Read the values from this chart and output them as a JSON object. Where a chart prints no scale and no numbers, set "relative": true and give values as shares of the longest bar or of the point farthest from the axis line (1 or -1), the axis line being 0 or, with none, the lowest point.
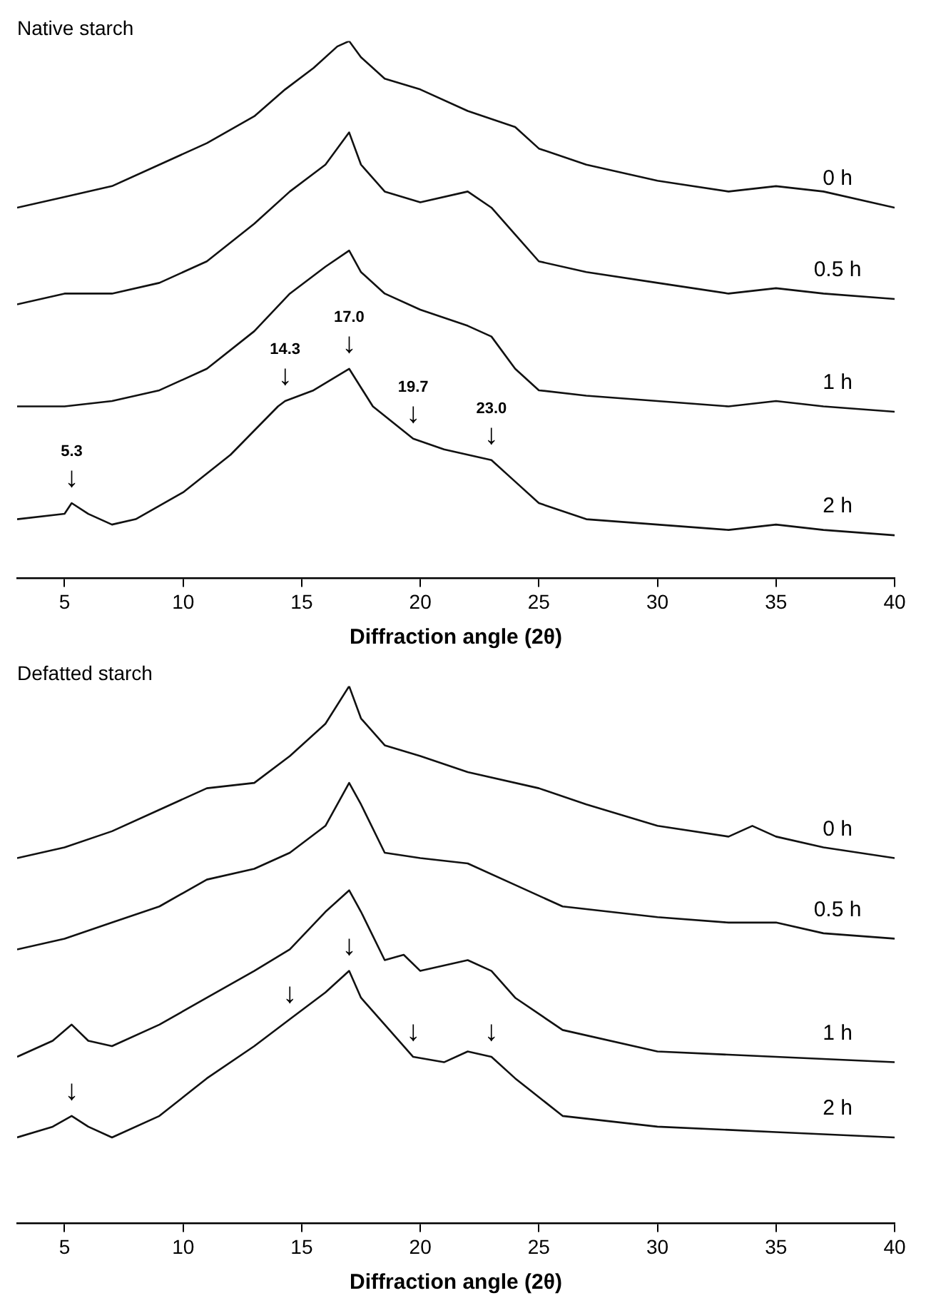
{
  "chart_data": [
    {
      "type": "line",
      "title": "Native starch",
      "xlabel": "Diffraction angle (2θ)",
      "relative": true,
      "xlim": [
        3,
        40
      ],
      "xticks": [
        5,
        10,
        15,
        20,
        25,
        30,
        35,
        40
      ],
      "series": [
        {
          "name": "0 h",
          "color": "#111111",
          "x": [
            3,
            5,
            7,
            9,
            11,
            13,
            14.3,
            15.5,
            16.5,
            17,
            17.5,
            18.5,
            20,
            22,
            24,
            25,
            27,
            30,
            33,
            35,
            37,
            40
          ],
          "values": [
            0.69,
            0.71,
            0.73,
            0.77,
            0.81,
            0.86,
            0.91,
            0.95,
            0.99,
            1.0,
            0.97,
            0.93,
            0.91,
            0.87,
            0.84,
            0.8,
            0.77,
            0.74,
            0.72,
            0.73,
            0.72,
            0.69
          ]
        },
        {
          "name": "0.5 h",
          "color": "#111111",
          "x": [
            3,
            5,
            7,
            9,
            11,
            13,
            14.5,
            16,
            17,
            17.5,
            18.5,
            20,
            22,
            23,
            24,
            25,
            27,
            30,
            33,
            35,
            37,
            40
          ],
          "values": [
            0.51,
            0.53,
            0.53,
            0.55,
            0.59,
            0.66,
            0.72,
            0.77,
            0.83,
            0.77,
            0.72,
            0.7,
            0.72,
            0.69,
            0.64,
            0.59,
            0.57,
            0.55,
            0.53,
            0.54,
            0.53,
            0.52
          ]
        },
        {
          "name": "1 h",
          "color": "#111111",
          "x": [
            3,
            5,
            7,
            9,
            11,
            13,
            14.5,
            16,
            17,
            17.5,
            18.5,
            20,
            22,
            23,
            24,
            25,
            27,
            30,
            33,
            35,
            37,
            40
          ],
          "values": [
            0.32,
            0.32,
            0.33,
            0.35,
            0.39,
            0.46,
            0.53,
            0.58,
            0.61,
            0.57,
            0.53,
            0.5,
            0.47,
            0.45,
            0.39,
            0.35,
            0.34,
            0.33,
            0.32,
            0.33,
            0.32,
            0.31
          ]
        },
        {
          "name": "2 h",
          "color": "#111111",
          "x": [
            3,
            5,
            5.3,
            6,
            7,
            8,
            10,
            12,
            14,
            14.3,
            15.5,
            17,
            18,
            19.7,
            21,
            22,
            23,
            24,
            25,
            27,
            30,
            33,
            35,
            37,
            40
          ],
          "values": [
            0.11,
            0.12,
            0.14,
            0.12,
            0.1,
            0.11,
            0.16,
            0.23,
            0.32,
            0.33,
            0.35,
            0.39,
            0.32,
            0.26,
            0.24,
            0.23,
            0.22,
            0.18,
            0.14,
            0.11,
            0.1,
            0.09,
            0.1,
            0.09,
            0.08
          ]
        }
      ],
      "annotations": [
        {
          "text": "5.3",
          "x": 5.3,
          "y": 0.14
        },
        {
          "text": "↓",
          "x": 5.3,
          "y": 0.14
        },
        {
          "text": "14.3",
          "x": 14.3,
          "y": 0.33
        },
        {
          "text": "↓",
          "x": 14.3,
          "y": 0.33
        },
        {
          "text": "17.0",
          "x": 17,
          "y": 0.39
        },
        {
          "text": "↓",
          "x": 17,
          "y": 0.39
        },
        {
          "text": "19.7",
          "x": 19.7,
          "y": 0.26
        },
        {
          "text": "↓",
          "x": 19.7,
          "y": 0.26
        },
        {
          "text": "23.0",
          "x": 23,
          "y": 0.22
        },
        {
          "text": "↓",
          "x": 23,
          "y": 0.22
        }
      ]
    },
    {
      "type": "line",
      "title": "Defatted starch",
      "xlabel": "Diffraction angle (2θ)",
      "relative": true,
      "xlim": [
        3,
        40
      ],
      "xticks": [
        5,
        10,
        15,
        20,
        25,
        30,
        35,
        40
      ],
      "series": [
        {
          "name": "0 h",
          "color": "#111111",
          "x": [
            3,
            5,
            7,
            9,
            11,
            13,
            14.5,
            16,
            17,
            17.5,
            18.5,
            20,
            22,
            25,
            27,
            30,
            33,
            34,
            35,
            37,
            40
          ],
          "values": [
            0.68,
            0.7,
            0.73,
            0.77,
            0.81,
            0.82,
            0.87,
            0.93,
            1.0,
            0.94,
            0.89,
            0.87,
            0.84,
            0.81,
            0.78,
            0.74,
            0.72,
            0.74,
            0.72,
            0.7,
            0.68
          ]
        },
        {
          "name": "0.5 h",
          "color": "#111111",
          "x": [
            3,
            5,
            7,
            9,
            11,
            13,
            14.5,
            16,
            17,
            17.5,
            18.5,
            20,
            22,
            24,
            26,
            28,
            30,
            33,
            35,
            37,
            40
          ],
          "values": [
            0.51,
            0.53,
            0.56,
            0.59,
            0.64,
            0.66,
            0.69,
            0.74,
            0.82,
            0.78,
            0.69,
            0.68,
            0.67,
            0.63,
            0.59,
            0.58,
            0.57,
            0.56,
            0.56,
            0.54,
            0.53
          ]
        },
        {
          "name": "1 h",
          "color": "#111111",
          "x": [
            3,
            4.5,
            5.3,
            6,
            7,
            9,
            11,
            13,
            14.5,
            16,
            17,
            17.5,
            18.5,
            19.3,
            20,
            22,
            23,
            24,
            26,
            30,
            35,
            40
          ],
          "values": [
            0.31,
            0.34,
            0.37,
            0.34,
            0.33,
            0.37,
            0.42,
            0.47,
            0.51,
            0.58,
            0.62,
            0.58,
            0.49,
            0.5,
            0.47,
            0.49,
            0.47,
            0.42,
            0.36,
            0.32,
            0.31,
            0.3
          ]
        },
        {
          "name": "2 h",
          "color": "#111111",
          "x": [
            3,
            4.5,
            5.3,
            6,
            7,
            9,
            11,
            13,
            14.5,
            16,
            17,
            17.5,
            18.5,
            19.7,
            21,
            22,
            23,
            24,
            26,
            30,
            35,
            40
          ],
          "values": [
            0.16,
            0.18,
            0.2,
            0.18,
            0.16,
            0.2,
            0.27,
            0.33,
            0.38,
            0.43,
            0.47,
            0.42,
            0.37,
            0.31,
            0.3,
            0.32,
            0.31,
            0.27,
            0.2,
            0.18,
            0.17,
            0.16
          ]
        }
      ],
      "annotations": [
        {
          "text": "↓",
          "x": 5.3,
          "y": 0.2
        },
        {
          "text": "↓",
          "x": 14.5,
          "y": 0.38
        },
        {
          "text": "↓",
          "x": 17,
          "y": 0.47
        },
        {
          "text": "↓",
          "x": 19.7,
          "y": 0.31
        },
        {
          "text": "↓",
          "x": 23,
          "y": 0.31
        }
      ]
    }
  ]
}
